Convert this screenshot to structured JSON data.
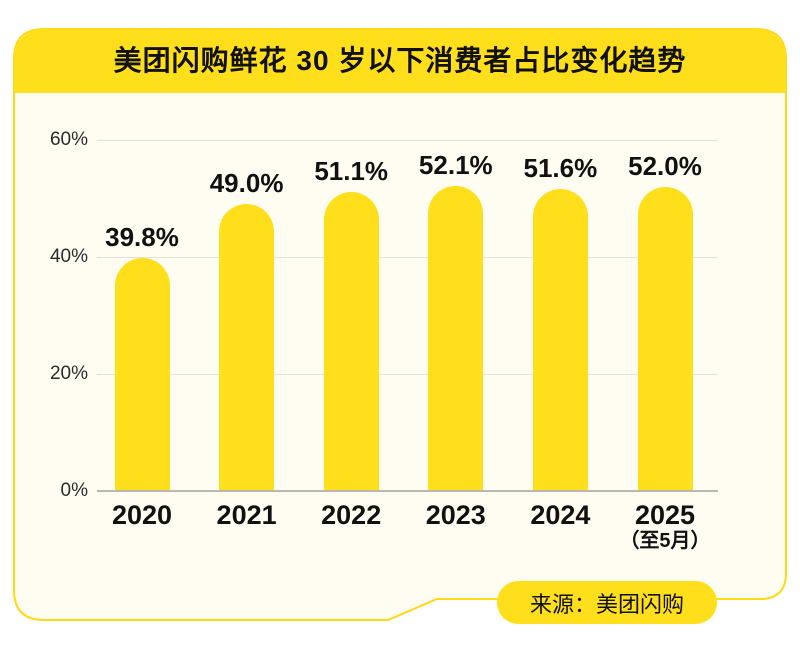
{
  "header": {
    "title": "美团闪购鲜花 30 岁以下消费者占比变化趋势"
  },
  "chart_data": {
    "type": "bar",
    "title": "美团闪购鲜花 30 岁以下消费者占比变化趋势",
    "categories": [
      "2020",
      "2021",
      "2022",
      "2023",
      "2024",
      "2025"
    ],
    "category_sublabels": [
      "",
      "",
      "",
      "",
      "",
      "（至5月）"
    ],
    "values": [
      39.8,
      49.0,
      51.1,
      52.1,
      51.6,
      52.0
    ],
    "value_labels": [
      "39.8%",
      "49.0%",
      "51.1%",
      "52.1%",
      "51.6%",
      "52.0%"
    ],
    "xlabel": "",
    "ylabel": "",
    "ylim": [
      0,
      60
    ],
    "yticks": [
      0,
      20,
      40,
      60
    ],
    "ytick_labels": [
      "0%",
      "20%",
      "40%",
      "60%"
    ],
    "grid": true,
    "legend_position": "none",
    "bar_color": "#FFDF1B"
  },
  "footer": {
    "source": "来源：美团闪购"
  },
  "colors": {
    "yellow": "#FFDF1B",
    "border_yellow": "#FFD913",
    "card_bg": "#FFFDF2",
    "text": "#111111",
    "grid": "#E4E2DA",
    "axis": "#B9B7AF"
  }
}
